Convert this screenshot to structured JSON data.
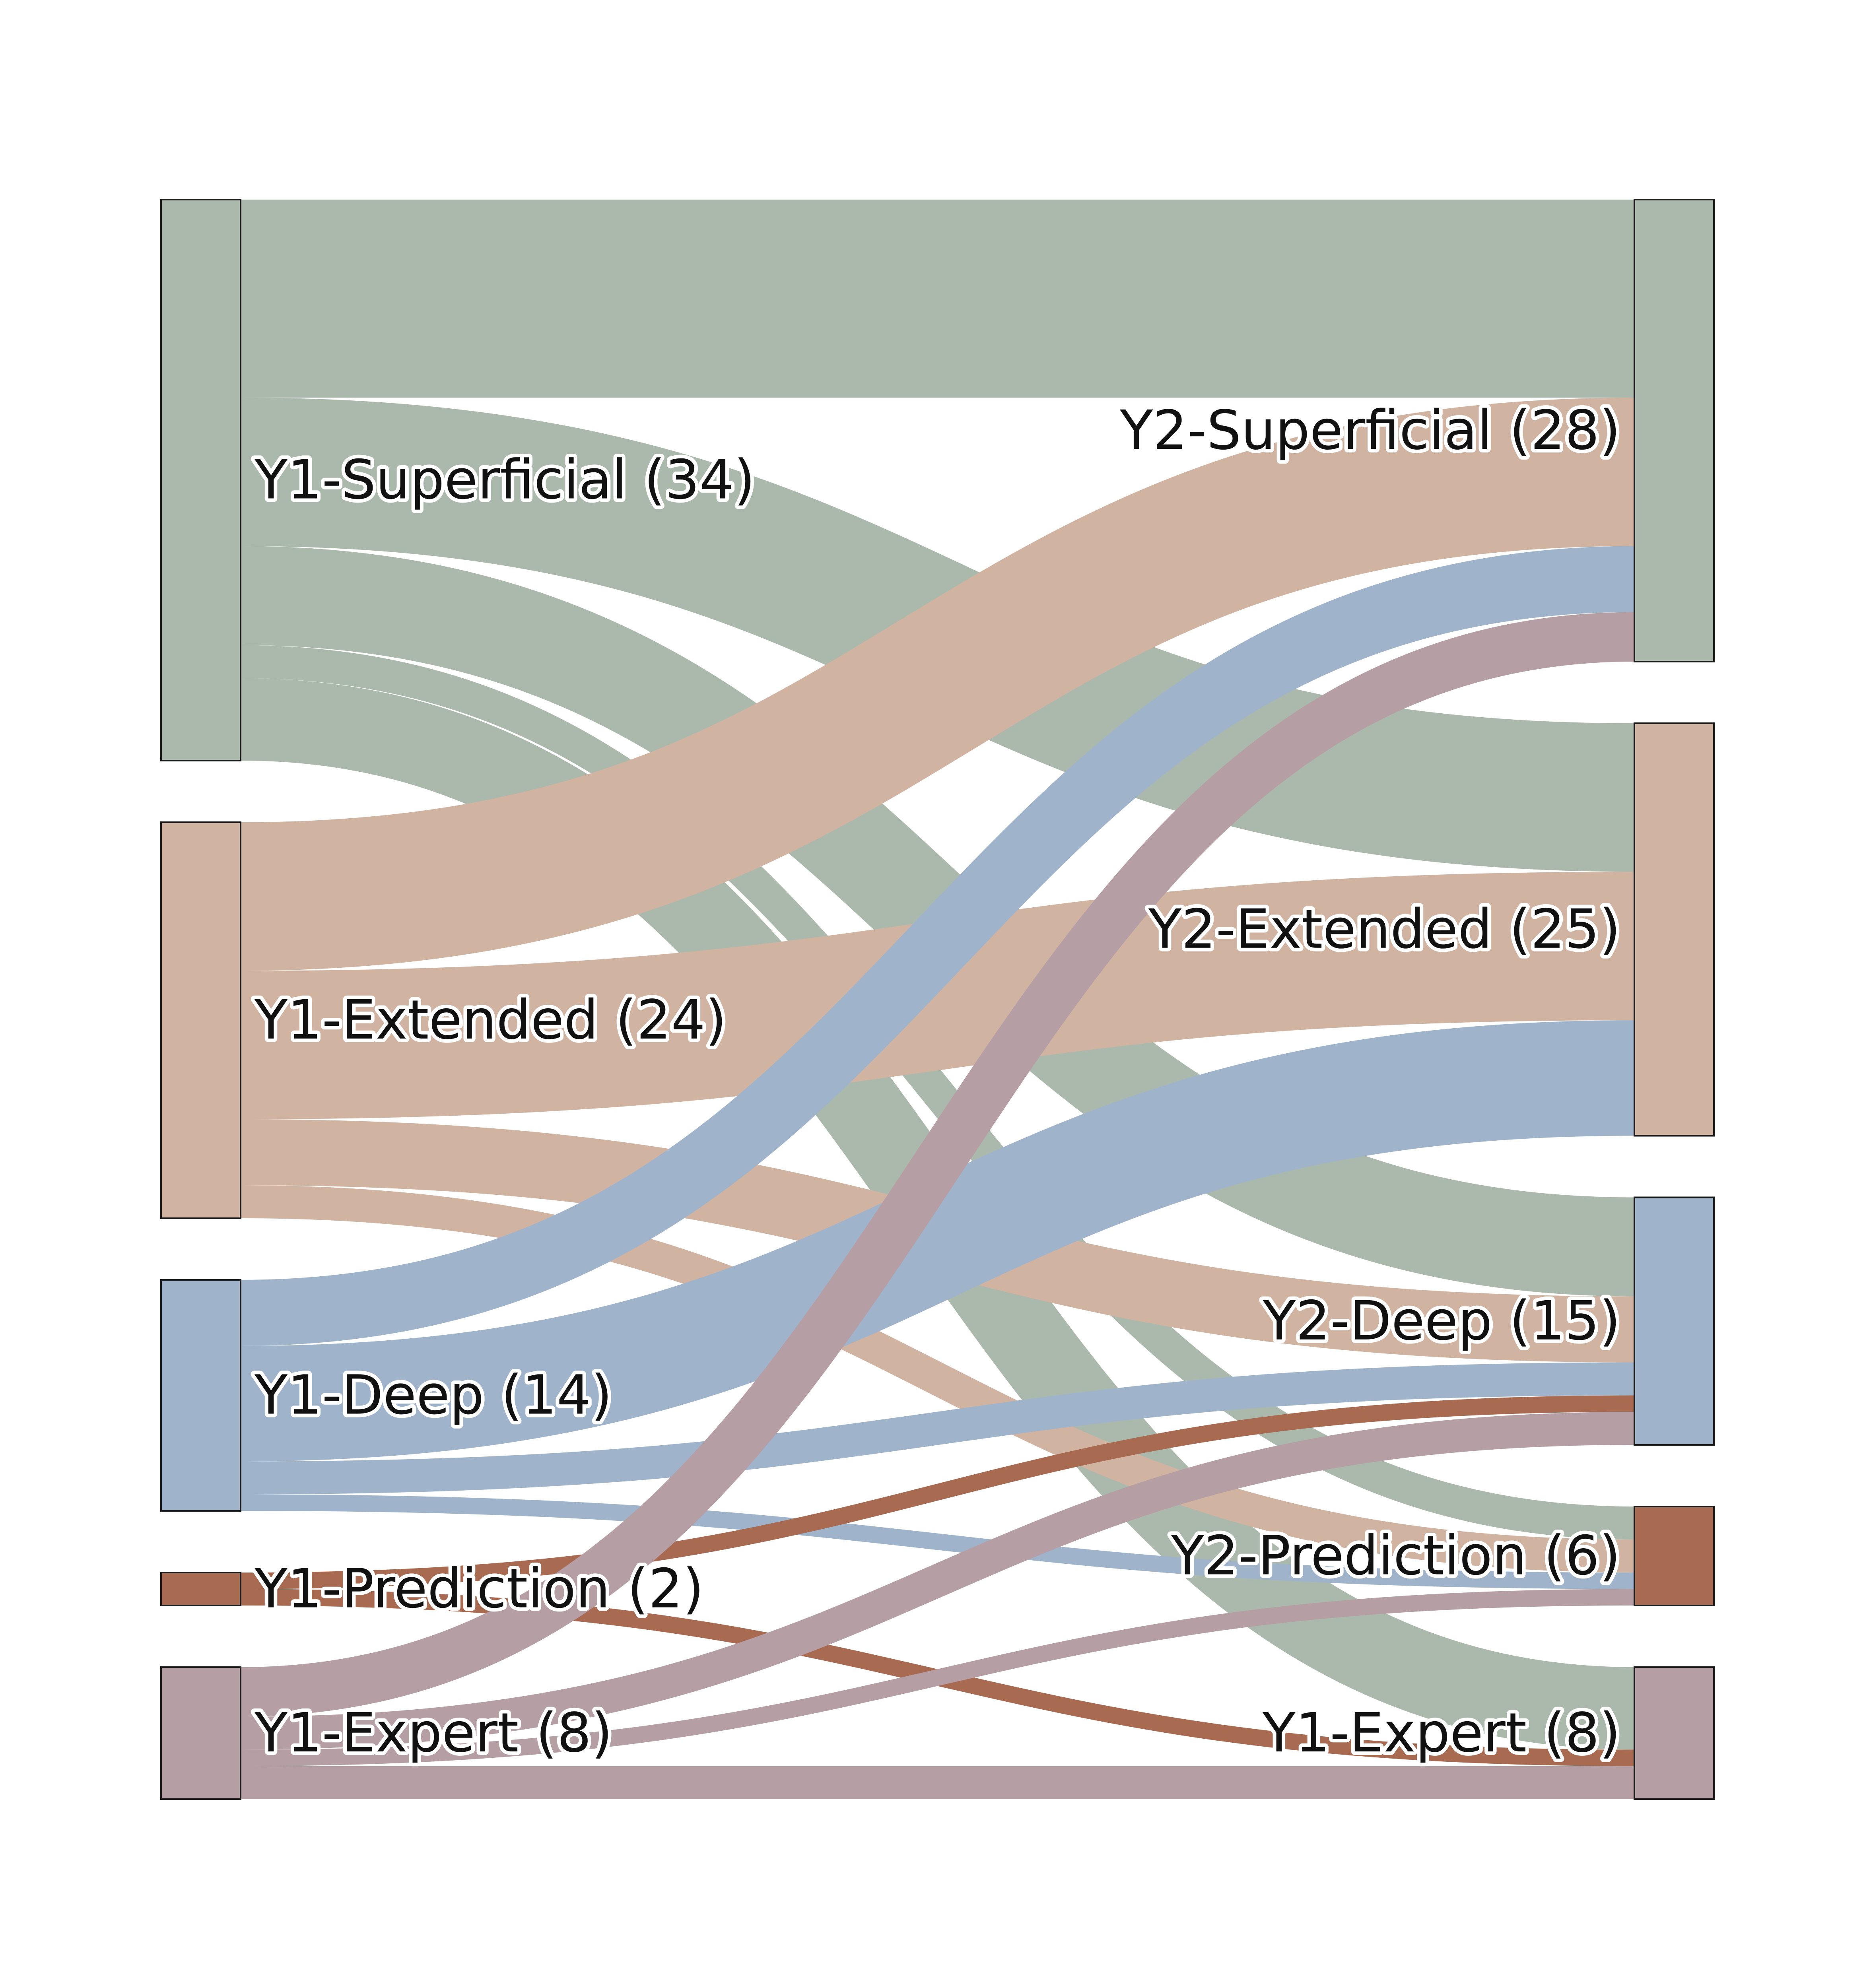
{
  "chart_data": {
    "type": "sankey",
    "colors": {
      "superficial": "#abb9ac",
      "extended": "#d0b3a0",
      "deep": "#9fb4ca",
      "prediction": "#a86a50",
      "expert": "#b59ea4"
    },
    "nodes": [
      {
        "id": "y1_sup",
        "label": "Y1-Superficial (34)",
        "column": "left",
        "value": 34,
        "color_key": "superficial"
      },
      {
        "id": "y1_ext",
        "label": "Y1-Extended (24)",
        "column": "left",
        "value": 24,
        "color_key": "extended"
      },
      {
        "id": "y1_deep",
        "label": "Y1-Deep (14)",
        "column": "left",
        "value": 14,
        "color_key": "deep"
      },
      {
        "id": "y1_pred",
        "label": "Y1-Prediction (2)",
        "column": "left",
        "value": 2,
        "color_key": "prediction"
      },
      {
        "id": "y1_exp",
        "label": "Y1-Expert (8)",
        "column": "left",
        "value": 8,
        "color_key": "expert"
      },
      {
        "id": "y2_sup",
        "label": "Y2-Superficial (28)",
        "column": "right",
        "value": 28,
        "color_key": "superficial"
      },
      {
        "id": "y2_ext",
        "label": "Y2-Extended (25)",
        "column": "right",
        "value": 25,
        "color_key": "extended"
      },
      {
        "id": "y2_deep",
        "label": "Y2-Deep (15)",
        "column": "right",
        "value": 15,
        "color_key": "deep"
      },
      {
        "id": "y2_pred",
        "label": "Y2-Prediction (6)",
        "column": "right",
        "value": 6,
        "color_key": "prediction"
      },
      {
        "id": "y2_exp",
        "label": "Y1-Expert (8)",
        "column": "right",
        "value": 8,
        "color_key": "expert"
      }
    ],
    "links": [
      {
        "source": "y1_sup",
        "target": "y2_sup",
        "value": 12
      },
      {
        "source": "y1_sup",
        "target": "y2_ext",
        "value": 9
      },
      {
        "source": "y1_sup",
        "target": "y2_deep",
        "value": 6
      },
      {
        "source": "y1_sup",
        "target": "y2_pred",
        "value": 2
      },
      {
        "source": "y1_sup",
        "target": "y2_exp",
        "value": 5
      },
      {
        "source": "y1_ext",
        "target": "y2_sup",
        "value": 9
      },
      {
        "source": "y1_ext",
        "target": "y2_ext",
        "value": 9
      },
      {
        "source": "y1_ext",
        "target": "y2_deep",
        "value": 4
      },
      {
        "source": "y1_ext",
        "target": "y2_pred",
        "value": 2
      },
      {
        "source": "y1_deep",
        "target": "y2_sup",
        "value": 4
      },
      {
        "source": "y1_deep",
        "target": "y2_ext",
        "value": 7
      },
      {
        "source": "y1_deep",
        "target": "y2_deep",
        "value": 2
      },
      {
        "source": "y1_deep",
        "target": "y2_pred",
        "value": 1
      },
      {
        "source": "y1_pred",
        "target": "y2_deep",
        "value": 1
      },
      {
        "source": "y1_pred",
        "target": "y2_exp",
        "value": 1
      },
      {
        "source": "y1_exp",
        "target": "y2_sup",
        "value": 3
      },
      {
        "source": "y1_exp",
        "target": "y2_deep",
        "value": 2
      },
      {
        "source": "y1_exp",
        "target": "y2_pred",
        "value": 1
      },
      {
        "source": "y1_exp",
        "target": "y2_exp",
        "value": 2
      }
    ]
  }
}
